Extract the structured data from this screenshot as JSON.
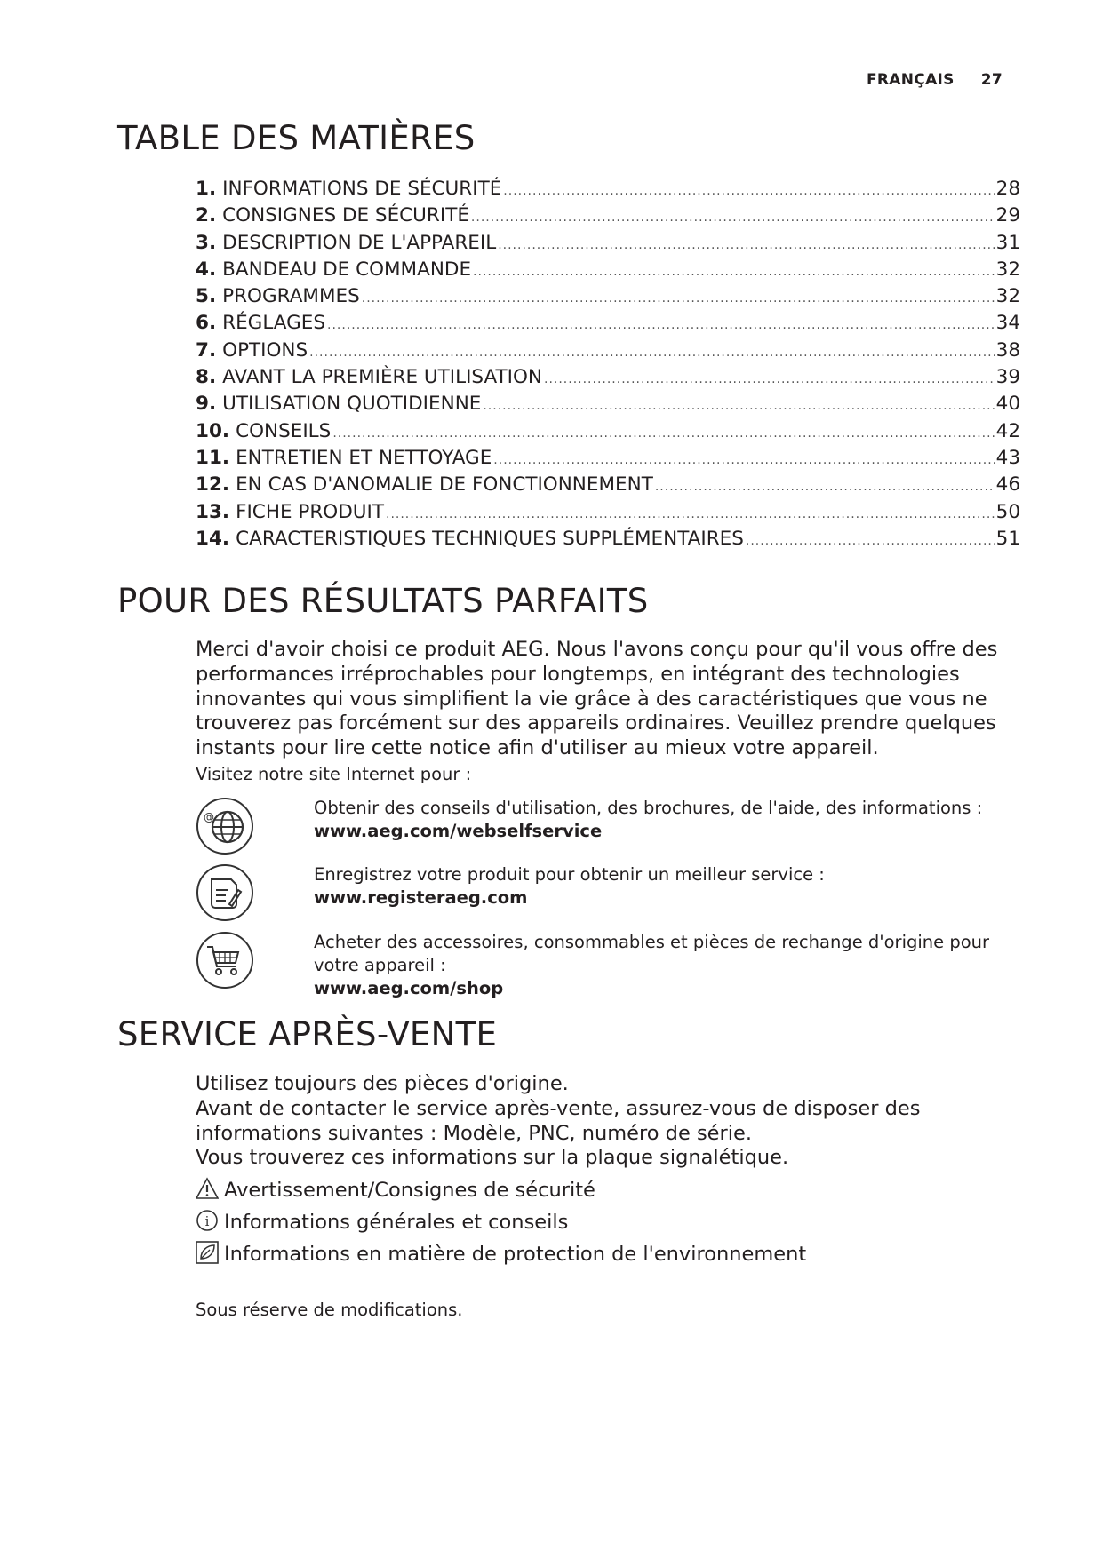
{
  "header": {
    "language": "FRANÇAIS",
    "page_number": "27"
  },
  "toc": {
    "title": "TABLE DES MATIÈRES",
    "items": [
      {
        "num": "1.",
        "label": "INFORMATIONS DE SÉCURITÉ",
        "page": "28"
      },
      {
        "num": "2.",
        "label": "CONSIGNES DE SÉCURITÉ",
        "page": "29"
      },
      {
        "num": "3.",
        "label": "DESCRIPTION DE L'APPAREIL",
        "page": "31"
      },
      {
        "num": "4.",
        "label": "BANDEAU DE COMMANDE",
        "page": "32"
      },
      {
        "num": "5.",
        "label": "PROGRAMMES",
        "page": "32"
      },
      {
        "num": "6.",
        "label": "RÉGLAGES",
        "page": "34"
      },
      {
        "num": "7.",
        "label": "OPTIONS",
        "page": "38"
      },
      {
        "num": "8.",
        "label": "AVANT LA PREMIÈRE UTILISATION",
        "page": "39"
      },
      {
        "num": "9.",
        "label": "UTILISATION QUOTIDIENNE",
        "page": "40"
      },
      {
        "num": "10.",
        "label": "CONSEILS",
        "page": "42"
      },
      {
        "num": "11.",
        "label": "ENTRETIEN ET NETTOYAGE",
        "page": "43"
      },
      {
        "num": "12.",
        "label": "EN CAS D'ANOMALIE DE FONCTIONNEMENT",
        "page": "46"
      },
      {
        "num": "13.",
        "label": "FICHE PRODUIT",
        "page": "50"
      },
      {
        "num": "14.",
        "label": "CARACTERISTIQUES TECHNIQUES SUPPLÉMENTAIRES",
        "page": "51"
      }
    ]
  },
  "results": {
    "title": "POUR DES RÉSULTATS PARFAITS",
    "paragraph": "Merci d'avoir choisi ce produit AEG. Nous l'avons conçu pour qu'il vous offre des performances irréprochables pour longtemps, en intégrant des technologies innovantes qui vous simplifient la vie grâce à des caractéristiques que vous ne trouverez pas forcément sur des appareils ordinaires. Veuillez prendre quelques instants pour lire cette notice afin d'utiliser au mieux votre appareil.",
    "visit": "Visitez notre site Internet pour :",
    "links": [
      {
        "icon": "globe-icon",
        "text": "Obtenir des conseils d'utilisation, des brochures, de l'aide, des informations :",
        "url": "www.aeg.com/webselfservice"
      },
      {
        "icon": "register-document-icon",
        "text": "Enregistrez votre produit pour obtenir un meilleur service :",
        "url": "www.registeraeg.com"
      },
      {
        "icon": "shopping-cart-icon",
        "text": "Acheter des accessoires, consommables et pièces de rechange d'origine pour votre appareil :",
        "url": "www.aeg.com/shop"
      }
    ]
  },
  "service": {
    "title": "SERVICE APRÈS-VENTE",
    "lines": [
      "Utilisez toujours des pièces d'origine.",
      "Avant de contacter le service après-vente, assurez-vous de disposer des",
      "informations suivantes : Modèle, PNC, numéro de série.",
      "Vous trouverez ces informations sur la plaque signalétique."
    ],
    "legend": [
      {
        "icon": "warning-icon",
        "text": "Avertissement/Consignes de sécurité"
      },
      {
        "icon": "info-icon",
        "text": "Informations générales et conseils"
      },
      {
        "icon": "environment-leaf-icon",
        "text": "Informations en matière de protection de l'environnement"
      }
    ],
    "note": "Sous réserve de modifications."
  }
}
